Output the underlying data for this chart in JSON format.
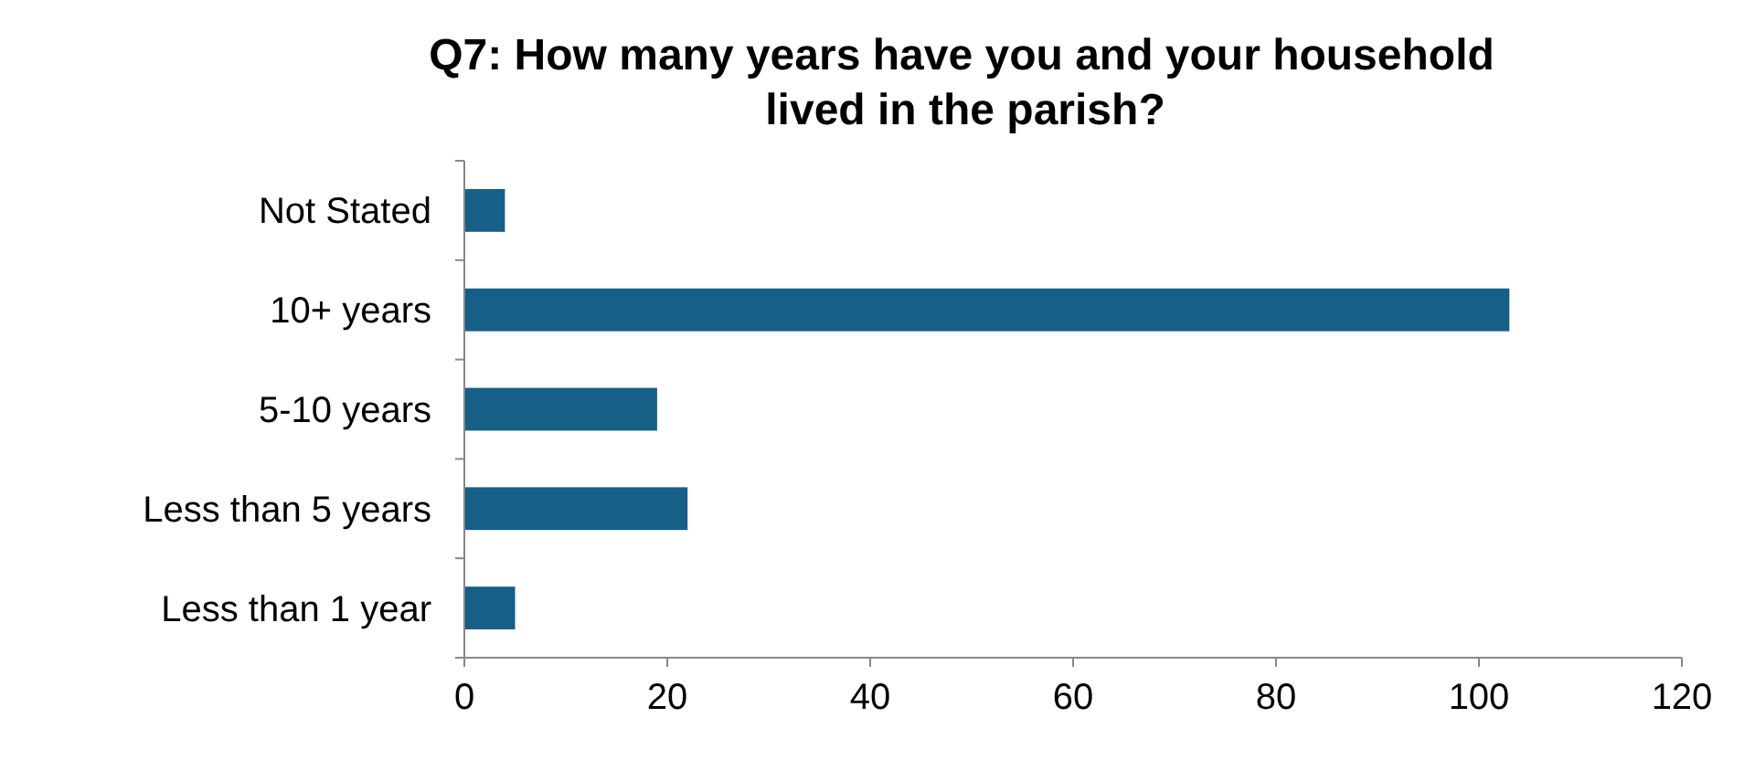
{
  "chart_data": {
    "type": "bar",
    "orientation": "horizontal",
    "title": "Q7: How many years have you and your household lived in the parish?",
    "categories": [
      "Not Stated",
      "10+ years",
      "5-10 years",
      "Less than 5 years",
      "Less than 1 year"
    ],
    "values": [
      4,
      103,
      19,
      22,
      5
    ],
    "color": "#165f86",
    "xlim": [
      0,
      120
    ],
    "xticks": [
      0,
      20,
      40,
      60,
      80,
      100,
      120
    ],
    "grid": false
  }
}
